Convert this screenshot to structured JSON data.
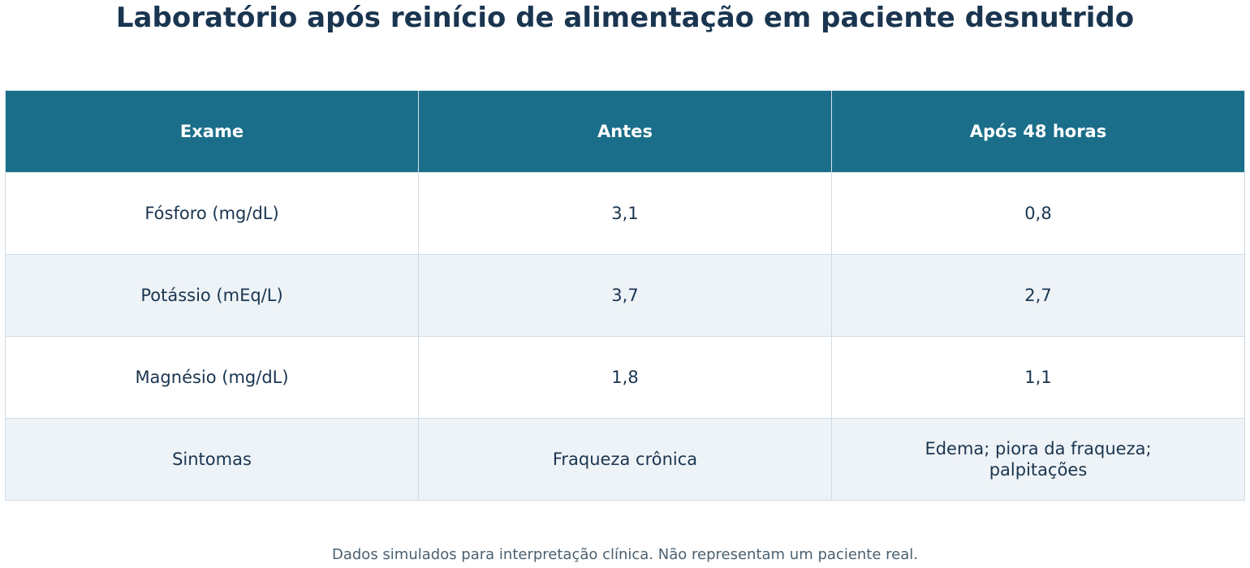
{
  "header": {
    "title": "Laboratório após reinício de alimentação em paciente desnutrido"
  },
  "table": {
    "columns": [
      "Exame",
      "Antes",
      "Após 48 horas"
    ],
    "rows": [
      [
        "Fósforo (mg/dL)",
        "3,1",
        "0,8"
      ],
      [
        "Potássio (mEq/L)",
        "3,7",
        "2,7"
      ],
      [
        "Magnésio (mg/dL)",
        "1,8",
        "1,1"
      ],
      [
        "Sintomas",
        "Fraqueza crônica",
        "Edema; piora da fraqueza;\npalpitações"
      ]
    ]
  },
  "footer": {
    "note": "Dados simulados para interpretação clínica. Não representam um paciente real."
  }
}
